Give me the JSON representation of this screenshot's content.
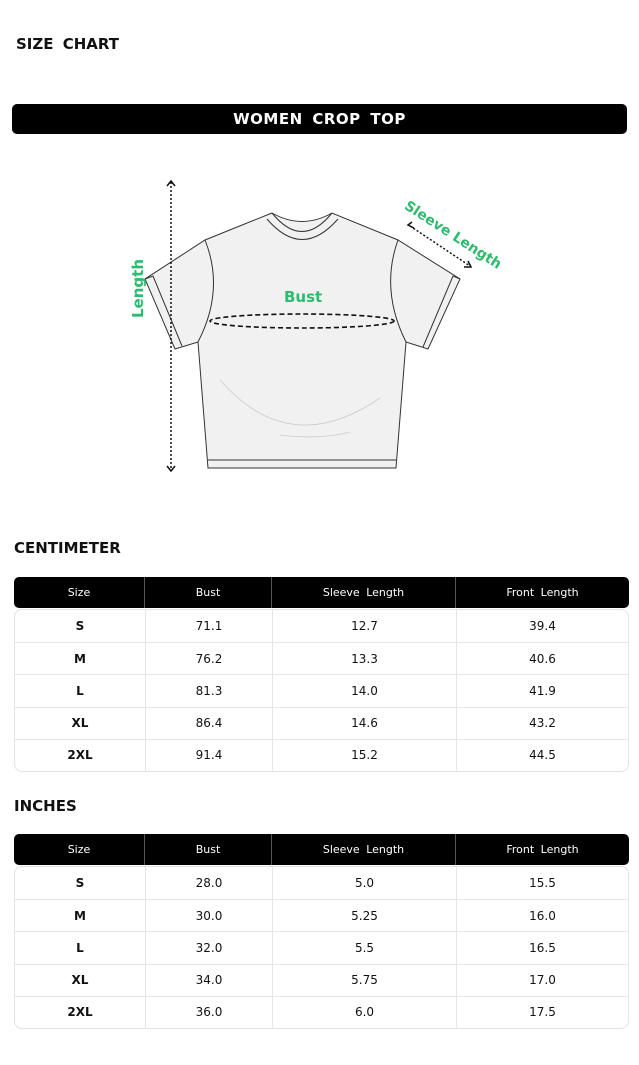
{
  "title": "SIZE  CHART",
  "banner": "WOMEN  CROP  TOP",
  "diagram": {
    "labels": {
      "length": "Length",
      "bust": "Bust",
      "sleeve": "Sleeve Length"
    },
    "label_color": "#2dbb6e"
  },
  "headers": [
    "Size",
    "Bust",
    "Sleeve  Length",
    "Front  Length"
  ],
  "tables": [
    {
      "title": "CENTIMETER",
      "rows": [
        [
          "S",
          "71.1",
          "12.7",
          "39.4"
        ],
        [
          "M",
          "76.2",
          "13.3",
          "40.6"
        ],
        [
          "L",
          "81.3",
          "14.0",
          "41.9"
        ],
        [
          "XL",
          "86.4",
          "14.6",
          "43.2"
        ],
        [
          "2XL",
          "91.4",
          "15.2",
          "44.5"
        ]
      ]
    },
    {
      "title": "INCHES",
      "rows": [
        [
          "S",
          "28.0",
          "5.0",
          "15.5"
        ],
        [
          "M",
          "30.0",
          "5.25",
          "16.0"
        ],
        [
          "L",
          "32.0",
          "5.5",
          "16.5"
        ],
        [
          "XL",
          "34.0",
          "5.75",
          "17.0"
        ],
        [
          "2XL",
          "36.0",
          "6.0",
          "17.5"
        ]
      ]
    }
  ]
}
